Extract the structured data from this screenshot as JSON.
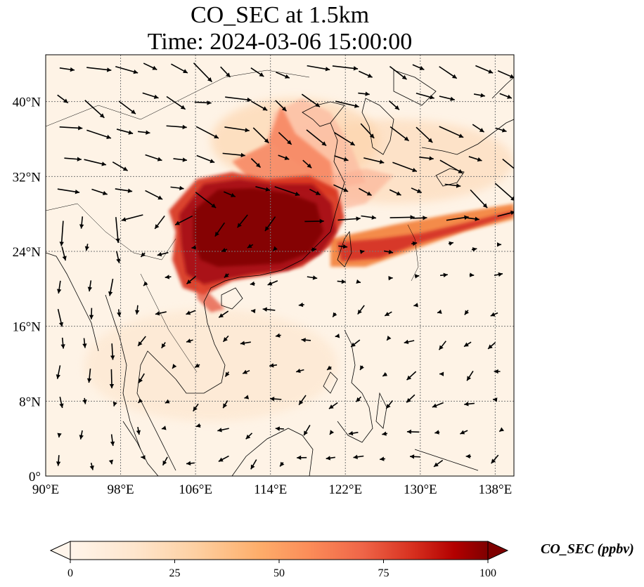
{
  "title": {
    "line1": "CO_SEC at 1.5km",
    "line2": "Time: 2024-03-06 15:00:00"
  },
  "map": {
    "lon_range": [
      90,
      140
    ],
    "lat_range": [
      0,
      45
    ],
    "lon_ticks": [
      {
        "value": 90,
        "label": "90°E"
      },
      {
        "value": 98,
        "label": "98°E"
      },
      {
        "value": 106,
        "label": "106°E"
      },
      {
        "value": 114,
        "label": "114°E"
      },
      {
        "value": 122,
        "label": "122°E"
      },
      {
        "value": 130,
        "label": "130°E"
      },
      {
        "value": 138,
        "label": "138°E"
      }
    ],
    "lat_ticks": [
      {
        "value": 0,
        "label": "0°"
      },
      {
        "value": 8,
        "label": "8°N"
      },
      {
        "value": 16,
        "label": "16°N"
      },
      {
        "value": 24,
        "label": "24°N"
      },
      {
        "value": 32,
        "label": "32°N"
      },
      {
        "value": 40,
        "label": "40°N"
      }
    ],
    "gridlines": true
  },
  "colorbar": {
    "label": "CO_SEC (ppbv)",
    "range": [
      0,
      100
    ],
    "ticks": [
      {
        "value": 0,
        "label": "0"
      },
      {
        "value": 25,
        "label": "25"
      },
      {
        "value": 50,
        "label": "50"
      },
      {
        "value": 75,
        "label": "75"
      },
      {
        "value": 100,
        "label": "100"
      }
    ],
    "colors": [
      "#fff5eb",
      "#fee6ce",
      "#fdd0a2",
      "#fdae6b",
      "#fd8d3c",
      "#f16913",
      "#d94801",
      "#a63603",
      "#7f0000"
    ],
    "extend": "both"
  },
  "plume": {
    "description_values_ppbv": "high concentrations over South China / Yangtze region, plume extending east to Taiwan and Pacific",
    "regions": [
      {
        "lon": [
          103,
          119
        ],
        "lat": [
          19,
          32
        ],
        "value": 100
      },
      {
        "lon": [
          110,
          117
        ],
        "lat": [
          32,
          39
        ],
        "value": 70
      },
      {
        "lon": [
          119,
          134
        ],
        "lat": [
          22,
          26
        ],
        "value": 85
      },
      {
        "lon": [
          125,
          140
        ],
        "lat": [
          25,
          29
        ],
        "value": 70
      },
      {
        "lon": [
          118,
          128
        ],
        "lat": [
          28,
          33
        ],
        "value": 45
      }
    ]
  }
}
